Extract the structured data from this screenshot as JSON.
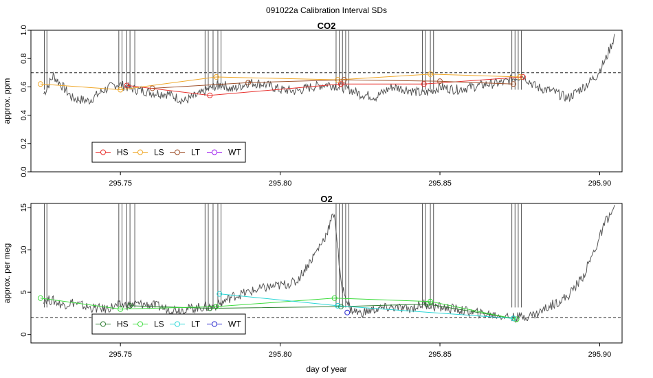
{
  "page_title": "091022a   Calibration Interval SDs",
  "chart_data": [
    {
      "type": "line",
      "title": "CO2",
      "ylabel": "approx. ppm",
      "xlabel": "",
      "xlim": [
        295.722,
        295.907
      ],
      "ylim": [
        0.0,
        1.0
      ],
      "x_ticks": [
        295.75,
        295.8,
        295.85,
        295.9
      ],
      "x_tick_labels": [
        "295.75",
        "295.80",
        "295.85",
        "295.90"
      ],
      "y_ticks": [
        0.0,
        0.2,
        0.4,
        0.6,
        0.8,
        1.0
      ],
      "y_tick_labels": [
        "0.0",
        "0.2",
        "0.4",
        "0.6",
        "0.8",
        "1.0"
      ],
      "reference_line": 0.7,
      "trace": {
        "color": "#555555",
        "x": [
          295.726,
          295.729,
          295.732,
          295.735,
          295.74,
          295.745,
          295.749,
          295.755,
          295.76,
          295.765,
          295.77,
          295.775,
          295.779,
          295.782,
          295.785,
          295.79,
          295.795,
          295.8,
          295.805,
          295.81,
          295.815,
          295.819,
          295.822,
          295.825,
          295.83,
          295.835,
          295.84,
          295.845,
          295.85,
          295.855,
          295.86,
          295.865,
          295.87,
          295.873,
          295.876,
          295.88,
          295.885,
          295.89,
          295.895,
          295.899,
          295.902,
          295.905
        ],
        "y": [
          0.55,
          0.68,
          0.6,
          0.52,
          0.5,
          0.58,
          0.62,
          0.58,
          0.56,
          0.55,
          0.5,
          0.55,
          0.6,
          0.62,
          0.58,
          0.63,
          0.62,
          0.58,
          0.57,
          0.6,
          0.62,
          0.6,
          0.58,
          0.55,
          0.53,
          0.6,
          0.58,
          0.55,
          0.6,
          0.58,
          0.6,
          0.62,
          0.63,
          0.66,
          0.68,
          0.6,
          0.57,
          0.52,
          0.6,
          0.68,
          0.8,
          0.98
        ]
      },
      "spikes_x": [
        295.7262,
        295.727,
        295.7495,
        295.7505,
        295.752,
        295.753,
        295.7545,
        295.7765,
        295.7775,
        295.779,
        295.7805,
        295.7815,
        295.8175,
        295.8185,
        295.8195,
        295.8205,
        295.8215,
        295.8445,
        295.8455,
        295.847,
        295.848,
        295.8725,
        295.8735,
        295.8745,
        295.8755
      ],
      "series": [
        {
          "name": "HS",
          "color": "#e8322f",
          "x": [
            295.752,
            295.778,
            295.819,
            295.845,
            295.876
          ],
          "y": [
            0.61,
            0.54,
            0.62,
            0.62,
            0.67
          ]
        },
        {
          "name": "LS",
          "color": "#f0a82a",
          "x": [
            295.725,
            295.75,
            295.78,
            295.818,
            295.847,
            295.875
          ],
          "y": [
            0.62,
            0.58,
            0.67,
            0.65,
            0.69,
            0.67
          ]
        },
        {
          "name": "LT",
          "color": "#a0522d",
          "x": [
            295.76,
            295.79,
            295.82,
            295.85,
            295.873
          ],
          "y": [
            0.59,
            0.63,
            0.65,
            0.64,
            0.62
          ]
        },
        {
          "name": "WT",
          "color": "#a020f0",
          "x": [],
          "y": []
        }
      ],
      "legend": "bottom-left"
    },
    {
      "type": "line",
      "title": "O2",
      "ylabel": "approx. per meg",
      "xlabel": "day of year",
      "xlim": [
        295.722,
        295.907
      ],
      "ylim": [
        -1.0,
        15.5
      ],
      "x_ticks": [
        295.75,
        295.8,
        295.85,
        295.9
      ],
      "x_tick_labels": [
        "295.75",
        "295.80",
        "295.85",
        "295.90"
      ],
      "y_ticks": [
        0,
        5,
        10,
        15
      ],
      "y_tick_labels": [
        "0",
        "5",
        "10",
        "15"
      ],
      "reference_line": 2.0,
      "trace": {
        "color": "#555555",
        "x": [
          295.726,
          295.729,
          295.732,
          295.735,
          295.74,
          295.745,
          295.749,
          295.755,
          295.76,
          295.765,
          295.77,
          295.775,
          295.779,
          295.782,
          295.785,
          295.79,
          295.795,
          295.8,
          295.805,
          295.81,
          295.814,
          295.817,
          295.819,
          295.822,
          295.825,
          295.83,
          295.835,
          295.84,
          295.845,
          295.85,
          295.855,
          295.86,
          295.865,
          295.87,
          295.873,
          295.876,
          295.88,
          295.885,
          295.89,
          295.895,
          295.899,
          295.902,
          295.905
        ],
        "y": [
          4.2,
          4.0,
          3.5,
          3.8,
          3.2,
          3.0,
          3.4,
          3.6,
          3.5,
          3.0,
          3.0,
          3.2,
          3.3,
          3.8,
          4.5,
          5.0,
          5.5,
          5.8,
          6.2,
          9.0,
          11.5,
          14.5,
          6.0,
          3.0,
          2.5,
          3.0,
          3.2,
          3.0,
          3.6,
          3.2,
          3.0,
          2.6,
          2.4,
          2.2,
          2.0,
          2.1,
          2.4,
          3.5,
          4.5,
          7.0,
          10.5,
          13.5,
          15.0
        ]
      },
      "spikes_x": [
        295.7262,
        295.727,
        295.7495,
        295.7505,
        295.752,
        295.753,
        295.7545,
        295.7765,
        295.7775,
        295.779,
        295.7805,
        295.7815,
        295.8175,
        295.8185,
        295.8195,
        295.8205,
        295.8215,
        295.8445,
        295.8455,
        295.847,
        295.848,
        295.8725,
        295.8735,
        295.8745,
        295.8755
      ],
      "series": [
        {
          "name": "HS",
          "color": "#2e7d32",
          "x": [
            295.753,
            295.778,
            295.819,
            295.846,
            295.873
          ],
          "y": [
            3.4,
            3.1,
            3.3,
            3.6,
            1.9
          ]
        },
        {
          "name": "LS",
          "color": "#3ddc3d",
          "x": [
            295.725,
            295.75,
            295.78,
            295.817,
            295.847,
            295.874
          ],
          "y": [
            4.3,
            3.0,
            3.3,
            4.3,
            3.9,
            1.8
          ]
        },
        {
          "name": "LT",
          "color": "#2ad6d6",
          "x": [
            295.781,
            295.818,
            295.873
          ],
          "y": [
            4.8,
            3.4,
            1.9
          ]
        },
        {
          "name": "WT",
          "color": "#2222cc",
          "x": [
            295.821
          ],
          "y": [
            2.6
          ]
        }
      ],
      "legend": "bottom-left"
    }
  ]
}
